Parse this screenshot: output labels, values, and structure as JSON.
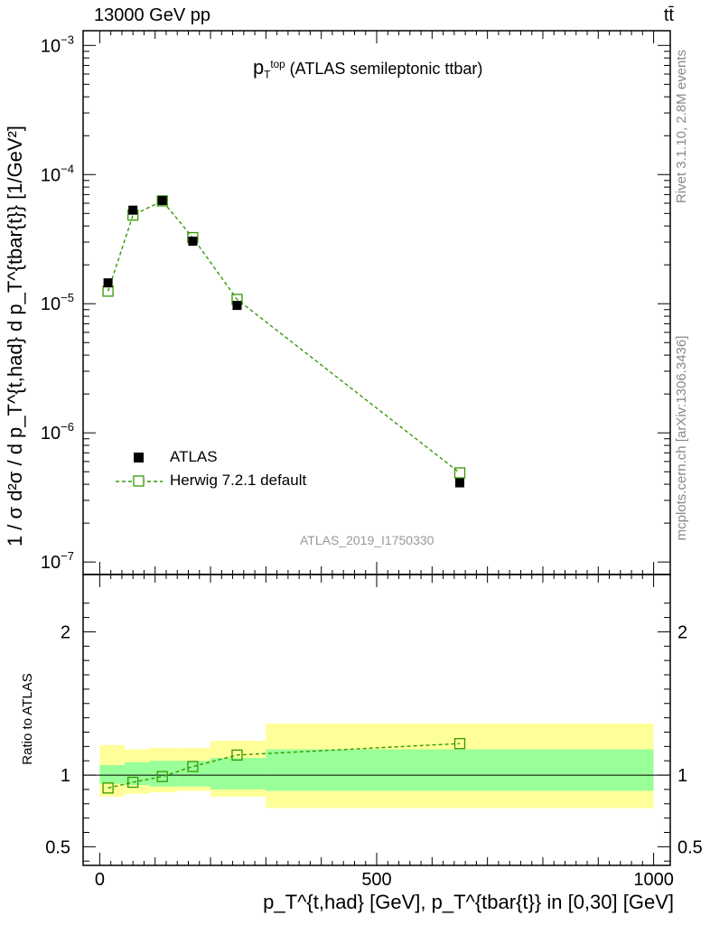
{
  "header": {
    "left": "13000 GeV pp",
    "right": "tt̄"
  },
  "title": {
    "main": "p",
    "main_sub": "T",
    "main_sup": "top",
    "detail": "(ATLAS semileptonic ttbar)"
  },
  "side_text": {
    "top": "Rivet 3.1.10,  2.8M events",
    "bottom": "mcplots.cern.ch [arXiv:1306.3436]"
  },
  "watermark": "ATLAS_2019_I1750330",
  "ylabel_main": "1 / σ d²σ / d p_T^{t,had} d p_T^{tbar{t}} [1/GeV²]",
  "ylabel_ratio": "Ratio to ATLAS",
  "xlabel": "p_T^{t,had} [GeV], p_T^{tbar{t}} in [0,30] [GeV]",
  "colors": {
    "mc": "#339900",
    "band_inner": "#99ff99",
    "band_outer": "#ffff99",
    "data": "#000000",
    "side": "#888888"
  },
  "chart_data": {
    "type": "scatter",
    "title": "p_T^top (ATLAS semileptonic ttbar)",
    "xlabel": "p_T^{t,had} [GeV], p_T^{tbar{t}} in [0,30] [GeV]",
    "ylabel": "1 / σ d²σ / d p_T^{t,had} d p_T^{tbar{t}} [1/GeV²]",
    "xlim": [
      -30,
      1030
    ],
    "ylim_main": [
      8e-08,
      0.0013
    ],
    "yscale_main": "log",
    "ylim_ratio": [
      0.37,
      2.4
    ],
    "legend_position": "lower-left",
    "x_ticks": [
      0,
      500,
      1000
    ],
    "y_ticks_main": [
      {
        "value": 1e-07,
        "base": "10",
        "exp": "−7"
      },
      {
        "value": 1e-06,
        "base": "10",
        "exp": "−6"
      },
      {
        "value": 1e-05,
        "base": "10",
        "exp": "−5"
      },
      {
        "value": 0.0001,
        "base": "10",
        "exp": "−4"
      },
      {
        "value": 0.001,
        "base": "10",
        "exp": "−3"
      }
    ],
    "y_ticks_ratio": [
      {
        "value": 0.5,
        "label": "0.5"
      },
      {
        "value": 1,
        "label": "1"
      },
      {
        "value": 2,
        "label": "2"
      }
    ],
    "bins": [
      {
        "lo": 0,
        "hi": 45,
        "x": 15
      },
      {
        "lo": 45,
        "hi": 90,
        "x": 60
      },
      {
        "lo": 90,
        "hi": 140,
        "x": 113
      },
      {
        "lo": 140,
        "hi": 200,
        "x": 168
      },
      {
        "lo": 200,
        "hi": 300,
        "x": 248
      },
      {
        "lo": 300,
        "hi": 1000,
        "x": 650
      }
    ],
    "series": [
      {
        "name": "ATLAS",
        "style": "filled-square",
        "values": [
          1.45e-05,
          5.3e-05,
          6.3e-05,
          3.05e-05,
          9.7e-06,
          4.1e-07
        ]
      },
      {
        "name": "Herwig 7.2.1 default",
        "style": "open-square-dashed",
        "values": [
          1.25e-05,
          4.85e-05,
          6.25e-05,
          3.25e-05,
          1.08e-05,
          4.9e-07
        ]
      }
    ],
    "ratio": {
      "mc": [
        0.91,
        0.95,
        0.99,
        1.06,
        1.14,
        1.22
      ],
      "band_inner": [
        [
          0.94,
          1.07
        ],
        [
          0.93,
          1.09
        ],
        [
          0.92,
          1.1
        ],
        [
          0.92,
          1.1
        ],
        [
          0.9,
          1.12
        ],
        [
          0.89,
          1.18
        ]
      ],
      "band_outer": [
        [
          0.85,
          1.21
        ],
        [
          0.87,
          1.18
        ],
        [
          0.88,
          1.19
        ],
        [
          0.89,
          1.19
        ],
        [
          0.85,
          1.24
        ],
        [
          0.77,
          1.36
        ]
      ]
    }
  }
}
